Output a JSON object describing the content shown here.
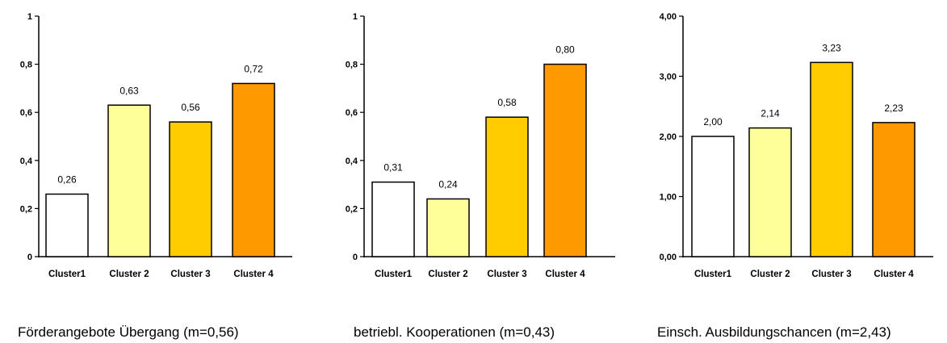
{
  "chart_data": [
    {
      "type": "bar",
      "title": "",
      "caption": "Förderangebote Übergang (m=0,56)",
      "categories": [
        "Cluster1",
        "Cluster 2",
        "Cluster 3",
        "Cluster 4"
      ],
      "values": [
        0.26,
        0.63,
        0.56,
        0.72
      ],
      "value_labels": [
        "0,26",
        "0,63",
        "0,56",
        "0,72"
      ],
      "ylim": [
        0,
        1
      ],
      "yticks": [
        0,
        0.2,
        0.4,
        0.6,
        0.8,
        1
      ],
      "ytick_labels": [
        "0",
        "0,2",
        "0,4",
        "0,6",
        "0,8",
        "1"
      ],
      "bar_colors": [
        "#ffffff",
        "#ffff99",
        "#ffcc00",
        "#ff9900"
      ],
      "grid": false,
      "legend": "none"
    },
    {
      "type": "bar",
      "title": "",
      "caption": "betriebl. Kooperationen (m=0,43)",
      "categories": [
        "Cluster1",
        "Cluster 2",
        "Cluster 3",
        "Cluster 4"
      ],
      "values": [
        0.31,
        0.24,
        0.58,
        0.8
      ],
      "value_labels": [
        "0,31",
        "0,24",
        "0,58",
        "0,80"
      ],
      "ylim": [
        0,
        1
      ],
      "yticks": [
        0,
        0.2,
        0.4,
        0.6,
        0.8,
        1
      ],
      "ytick_labels": [
        "0",
        "0,2",
        "0,4",
        "0,6",
        "0,8",
        "1"
      ],
      "bar_colors": [
        "#ffffff",
        "#ffff99",
        "#ffcc00",
        "#ff9900"
      ],
      "grid": false,
      "legend": "none"
    },
    {
      "type": "bar",
      "title": "",
      "caption": "Einsch. Ausbildungschancen (m=2,43)",
      "categories": [
        "Cluster1",
        "Cluster 2",
        "Cluster 3",
        "Cluster 4"
      ],
      "values": [
        2.0,
        2.14,
        3.23,
        2.23
      ],
      "value_labels": [
        "2,00",
        "2,14",
        "3,23",
        "2,23"
      ],
      "ylim": [
        0,
        4
      ],
      "yticks": [
        0,
        1,
        2,
        3,
        4
      ],
      "ytick_labels": [
        "0,00",
        "1,00",
        "2,00",
        "3,00",
        "4,00"
      ],
      "bar_colors": [
        "#ffffff",
        "#ffff99",
        "#ffcc00",
        "#ff9900"
      ],
      "grid": false,
      "legend": "none"
    }
  ]
}
